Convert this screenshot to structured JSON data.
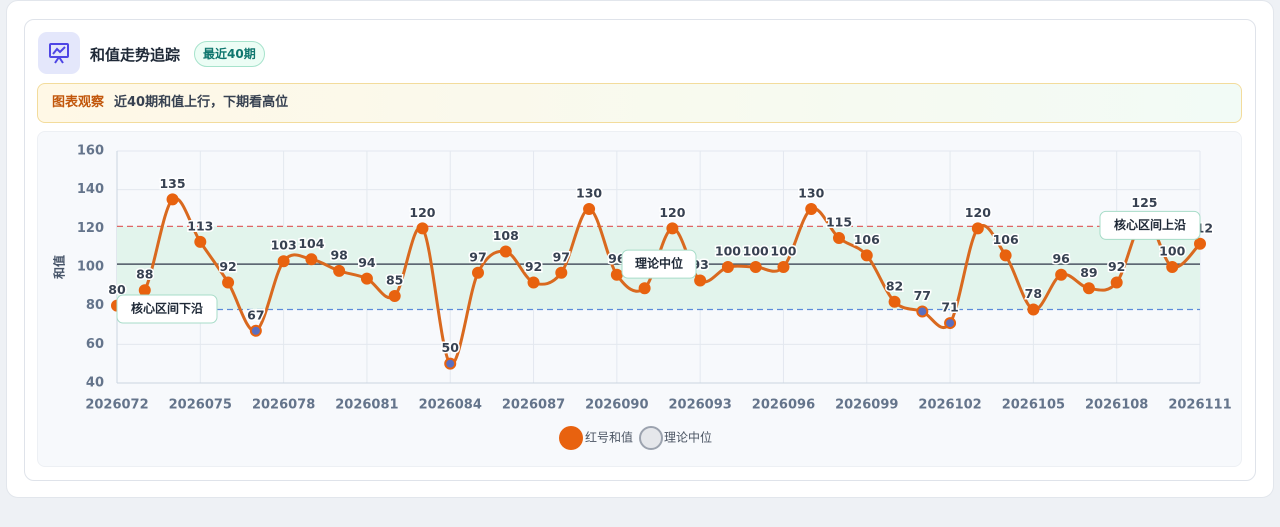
{
  "header": {
    "title": "和值走势追踪",
    "badge": "最近40期"
  },
  "observation": {
    "label": "图表观察",
    "text": "近40期和值上行，下期看高位"
  },
  "chart_data": {
    "type": "line",
    "y_label": "和值",
    "categories": [
      "2026072",
      null,
      null,
      "2026075",
      null,
      null,
      "2026078",
      null,
      null,
      "2026081",
      null,
      null,
      "2026084",
      null,
      null,
      "2026087",
      null,
      null,
      "2026090",
      null,
      null,
      "2026093",
      null,
      null,
      "2026096",
      null,
      null,
      "2026099",
      null,
      null,
      "2026102",
      null,
      null,
      "2026105",
      null,
      null,
      "2026108",
      null,
      null,
      "2026111"
    ],
    "series": [
      {
        "name": "红号和值",
        "color": "#d9691f",
        "marker_color": "#e8620f",
        "low_marker_color": "#5b6fbf",
        "values": [
          80,
          88,
          135,
          113,
          92,
          67,
          103,
          104,
          98,
          94,
          85,
          120,
          50,
          97,
          108,
          92,
          97,
          130,
          96,
          89,
          120,
          93,
          100,
          100,
          100,
          130,
          115,
          106,
          82,
          77,
          71,
          120,
          106,
          78,
          96,
          89,
          92,
          125,
          100,
          112
        ]
      }
    ],
    "reference_lines": [
      {
        "name": "核心区间上沿",
        "value": 121,
        "color": "#e06666",
        "style": "dashed"
      },
      {
        "name": "理论中位",
        "value": 101.5,
        "color": "#4b5563",
        "style": "solid",
        "legend_color": "#e5e7eb"
      },
      {
        "name": "核心区间下沿",
        "value": 78,
        "color": "#5b8bd9",
        "style": "dashed"
      }
    ],
    "shade_between_bounds": true,
    "band_color": "#e2f4ec",
    "ylim": [
      40,
      160
    ],
    "yticks": [
      40,
      60,
      80,
      100,
      120,
      140,
      160
    ],
    "grid": true
  }
}
